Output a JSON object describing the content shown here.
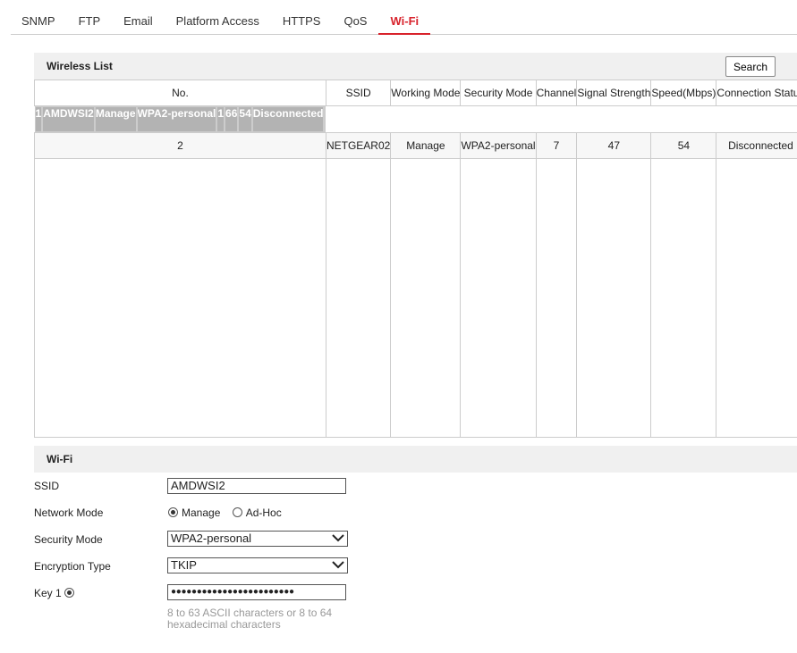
{
  "tabs": [
    "SNMP",
    "FTP",
    "Email",
    "Platform Access",
    "HTTPS",
    "QoS",
    "Wi-Fi"
  ],
  "active_tab": "Wi-Fi",
  "accent_color": "#d8222b",
  "wireless_list": {
    "title": "Wireless List",
    "search_label": "Search",
    "columns": [
      "No.",
      "SSID",
      "Working Mode",
      "Security Mode",
      "Channel",
      "Signal Strength",
      "Speed(Mbps)",
      "Connection Status"
    ],
    "rows": [
      [
        "1",
        "AMDWSI2",
        "Manage",
        "WPA2-personal",
        "1",
        "66",
        "54",
        "Disconnected"
      ],
      [
        "2",
        "NETGEAR02",
        "Manage",
        "WPA2-personal",
        "7",
        "47",
        "54",
        "Disconnected"
      ]
    ],
    "selected_row": 1
  },
  "wifi": {
    "title": "Wi-Fi",
    "ssid_label": "SSID",
    "ssid_value": "AMDWSI2",
    "network_mode_label": "Network Mode",
    "mode_manage": "Manage",
    "mode_adhoc": "Ad-Hoc",
    "mode_selected": "Manage",
    "security_mode_label": "Security Mode",
    "security_mode_value": "WPA2-personal",
    "encryption_label": "Encryption Type",
    "encryption_value": "TKIP",
    "key_label": "Key 1",
    "key_value": "●●●●●●●●●●●●●●●●●●●●●●●●",
    "hint": "8 to 63 ASCII characters or 8 to 64 hexadecimal characters"
  }
}
